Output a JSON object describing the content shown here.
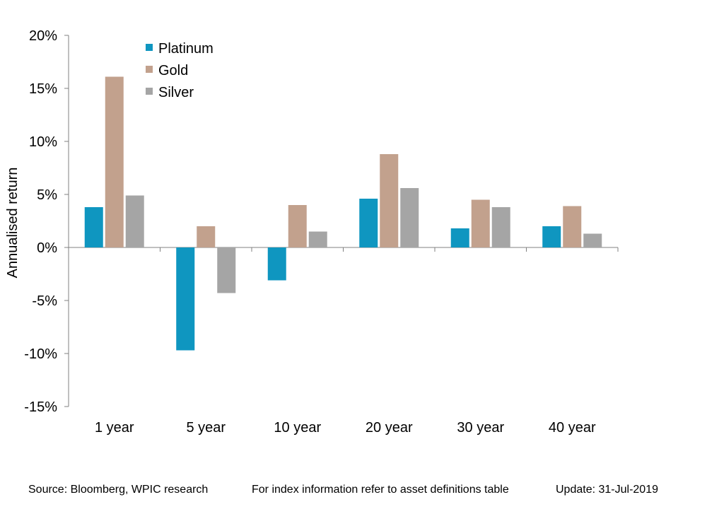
{
  "chart_data": {
    "type": "bar",
    "categories": [
      "1 year",
      "5 year",
      "10 year",
      "20 year",
      "30 year",
      "40 year"
    ],
    "series": [
      {
        "name": "Platinum",
        "color": "#0F96C0",
        "values": [
          3.8,
          -9.7,
          -3.1,
          4.6,
          1.8,
          2.0
        ]
      },
      {
        "name": "Gold",
        "color": "#C2A18D",
        "values": [
          16.1,
          2.0,
          4.0,
          8.8,
          4.5,
          3.9
        ]
      },
      {
        "name": "Silver",
        "color": "#A5A5A5",
        "values": [
          4.9,
          -4.3,
          1.5,
          5.6,
          3.8,
          1.3
        ]
      }
    ],
    "ylabel": "Annualised return",
    "ylim": [
      -15,
      20
    ],
    "yticks": [
      20,
      15,
      10,
      5,
      0,
      -5,
      -10,
      -15
    ],
    "ytick_labels": [
      "20%",
      "15%",
      "10%",
      "5%",
      "0%",
      "-5%",
      "-10%",
      "-15%"
    ],
    "grid": false,
    "legend_position": "top-left"
  },
  "footer": {
    "source": "Source: Bloomberg, WPIC research",
    "note": "For index information refer to asset definitions table",
    "update": "Update: 31-Jul-2019"
  }
}
